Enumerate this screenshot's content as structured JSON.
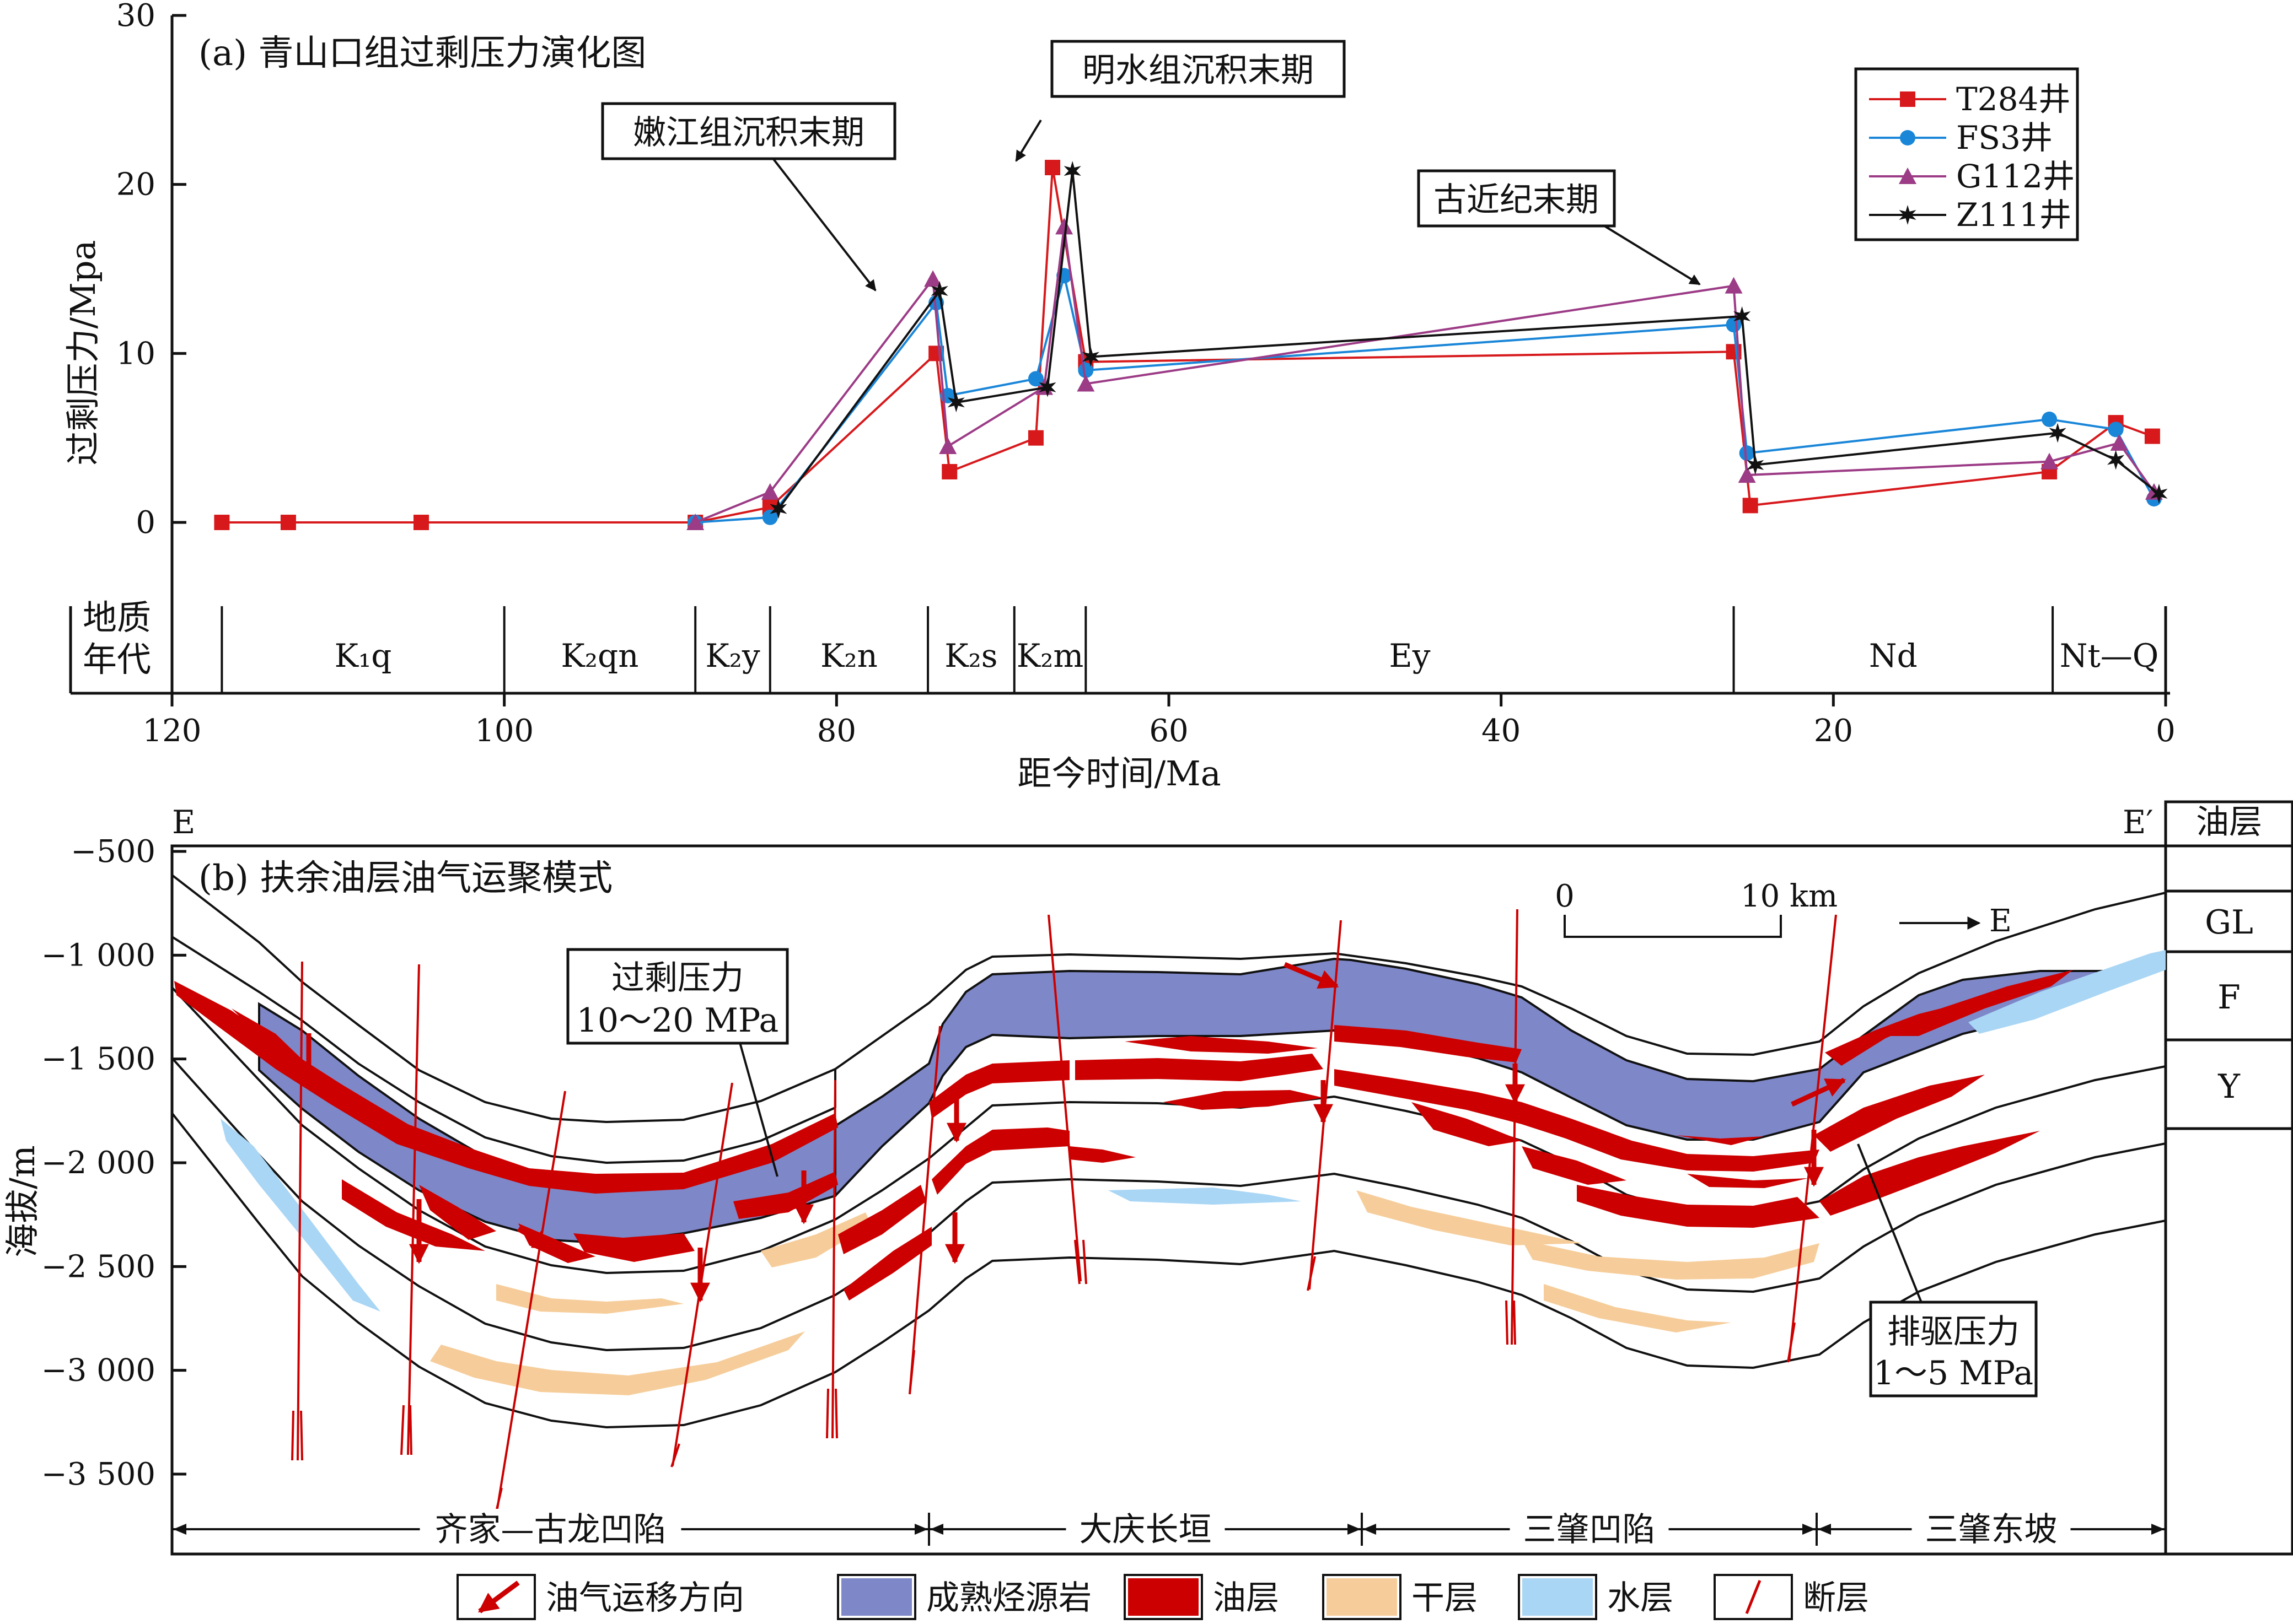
{
  "chart_data": [
    {
      "type": "line",
      "title": "(a) 青山口组过剩压力演化图",
      "xlabel": "距今时间/Ma",
      "ylabel": "过剩压力/Mpa",
      "xlim": [
        120,
        0
      ],
      "ylim": [
        0,
        30
      ],
      "x_ticks": [
        "120",
        "100",
        "80",
        "60",
        "40",
        "20",
        "0"
      ],
      "y_ticks": [
        "0",
        "10",
        "20",
        "30"
      ],
      "legend_position": "top-right",
      "series": [
        {
          "name": "T284井",
          "color": "#d7191c",
          "marker": "square",
          "x": [
            117,
            113,
            105,
            88.5,
            84,
            74,
            73.2,
            68,
            67,
            65,
            26,
            25,
            7,
            3,
            0.8
          ],
          "y": [
            0,
            0,
            0,
            0,
            0.9,
            10,
            3.0,
            5.0,
            21,
            9.5,
            10.1,
            1.0,
            3.0,
            5.9,
            5.1
          ]
        },
        {
          "name": "FS3井",
          "color": "#1a86d8",
          "marker": "circle",
          "x": [
            88.5,
            84,
            74,
            73.3,
            68,
            66.3,
            65,
            26,
            25.2,
            7,
            3,
            0.7
          ],
          "y": [
            0,
            0.3,
            13.0,
            7.5,
            8.5,
            14.6,
            9.0,
            11.7,
            4.1,
            6.1,
            5.5,
            1.4
          ]
        },
        {
          "name": "G112井",
          "color": "#9c3b86",
          "marker": "triangle",
          "x": [
            88.5,
            84,
            74.2,
            73.3,
            67.5,
            66.3,
            65,
            26,
            25.2,
            7,
            2.8,
            0.7
          ],
          "y": [
            0,
            1.8,
            14.4,
            4.5,
            8.0,
            17.5,
            8.2,
            14.0,
            2.8,
            3.6,
            4.7,
            1.8
          ]
        },
        {
          "name": "Z111井",
          "color": "#111111",
          "marker": "star",
          "x": [
            83.5,
            73.8,
            72.8,
            67.3,
            65.8,
            64.7,
            25.5,
            24.7,
            6.5,
            3.0,
            0.4
          ],
          "y": [
            0.8,
            13.7,
            7.1,
            8.0,
            20.8,
            9.8,
            12.2,
            3.4,
            5.3,
            3.7,
            1.7
          ]
        }
      ],
      "annotations": [
        {
          "text": "嫩江组沉积末期",
          "x": 74,
          "y": 13.8
        },
        {
          "text": "明水组沉积末期",
          "x": 66,
          "y": 20.8
        },
        {
          "text": "古近纪末期",
          "x": 26,
          "y": 14.0
        }
      ],
      "periods": {
        "header": [
          "地质",
          "年代"
        ],
        "items": [
          {
            "label": "K₁q",
            "start": 117,
            "end": 100
          },
          {
            "label": "K₂qn",
            "start": 100,
            "end": 88.5
          },
          {
            "label": "K₂y",
            "start": 88.5,
            "end": 84
          },
          {
            "label": "K₂n",
            "start": 84,
            "end": 74.5
          },
          {
            "label": "K₂s",
            "start": 74.5,
            "end": 69.3
          },
          {
            "label": "K₂m",
            "start": 69.3,
            "end": 65
          },
          {
            "label": "Ey",
            "start": 65,
            "end": 26
          },
          {
            "label": "Nd",
            "start": 26,
            "end": 6.8
          },
          {
            "label": "Nt—Q",
            "start": 6.8,
            "end": 0
          }
        ]
      }
    },
    {
      "type": "diagram",
      "title": "(b) 扶余油层油气运聚模式",
      "ylabel": "海拔/m",
      "ylim": [
        -3500,
        -500
      ],
      "y_ticks": [
        "−500",
        "−1 000",
        "−1 500",
        "−2 000",
        "−2 500",
        "−3 000",
        "−3 500"
      ],
      "section_labels": {
        "left": "E",
        "right": "E′"
      },
      "scale_bar": {
        "start": "0",
        "end": "10 km"
      },
      "direction": "E",
      "callouts": [
        {
          "title": "过剩压力",
          "value": "10～20 MPa"
        },
        {
          "title": "排驱压力",
          "value": "1～5 MPa"
        }
      ],
      "zones": [
        "齐家—古龙凹陷",
        "大庆长垣",
        "三肇凹陷",
        "三肇东坡"
      ],
      "oil_layer_column": {
        "header": "油层",
        "items": [
          "GL",
          "F",
          "Y"
        ]
      },
      "legend": [
        {
          "label": "油气运移方向",
          "icon": "arrow-icon",
          "color": "#cc0000"
        },
        {
          "label": "成熟烃源岩",
          "icon": "swatch",
          "color": "#7e87c8"
        },
        {
          "label": "油层",
          "icon": "swatch",
          "color": "#cc0000"
        },
        {
          "label": "干层",
          "icon": "swatch",
          "color": "#f6cd9a"
        },
        {
          "label": "水层",
          "icon": "swatch",
          "color": "#a9d6f5"
        },
        {
          "label": "断层",
          "icon": "fault-icon",
          "color": "#cc0000"
        }
      ]
    }
  ]
}
